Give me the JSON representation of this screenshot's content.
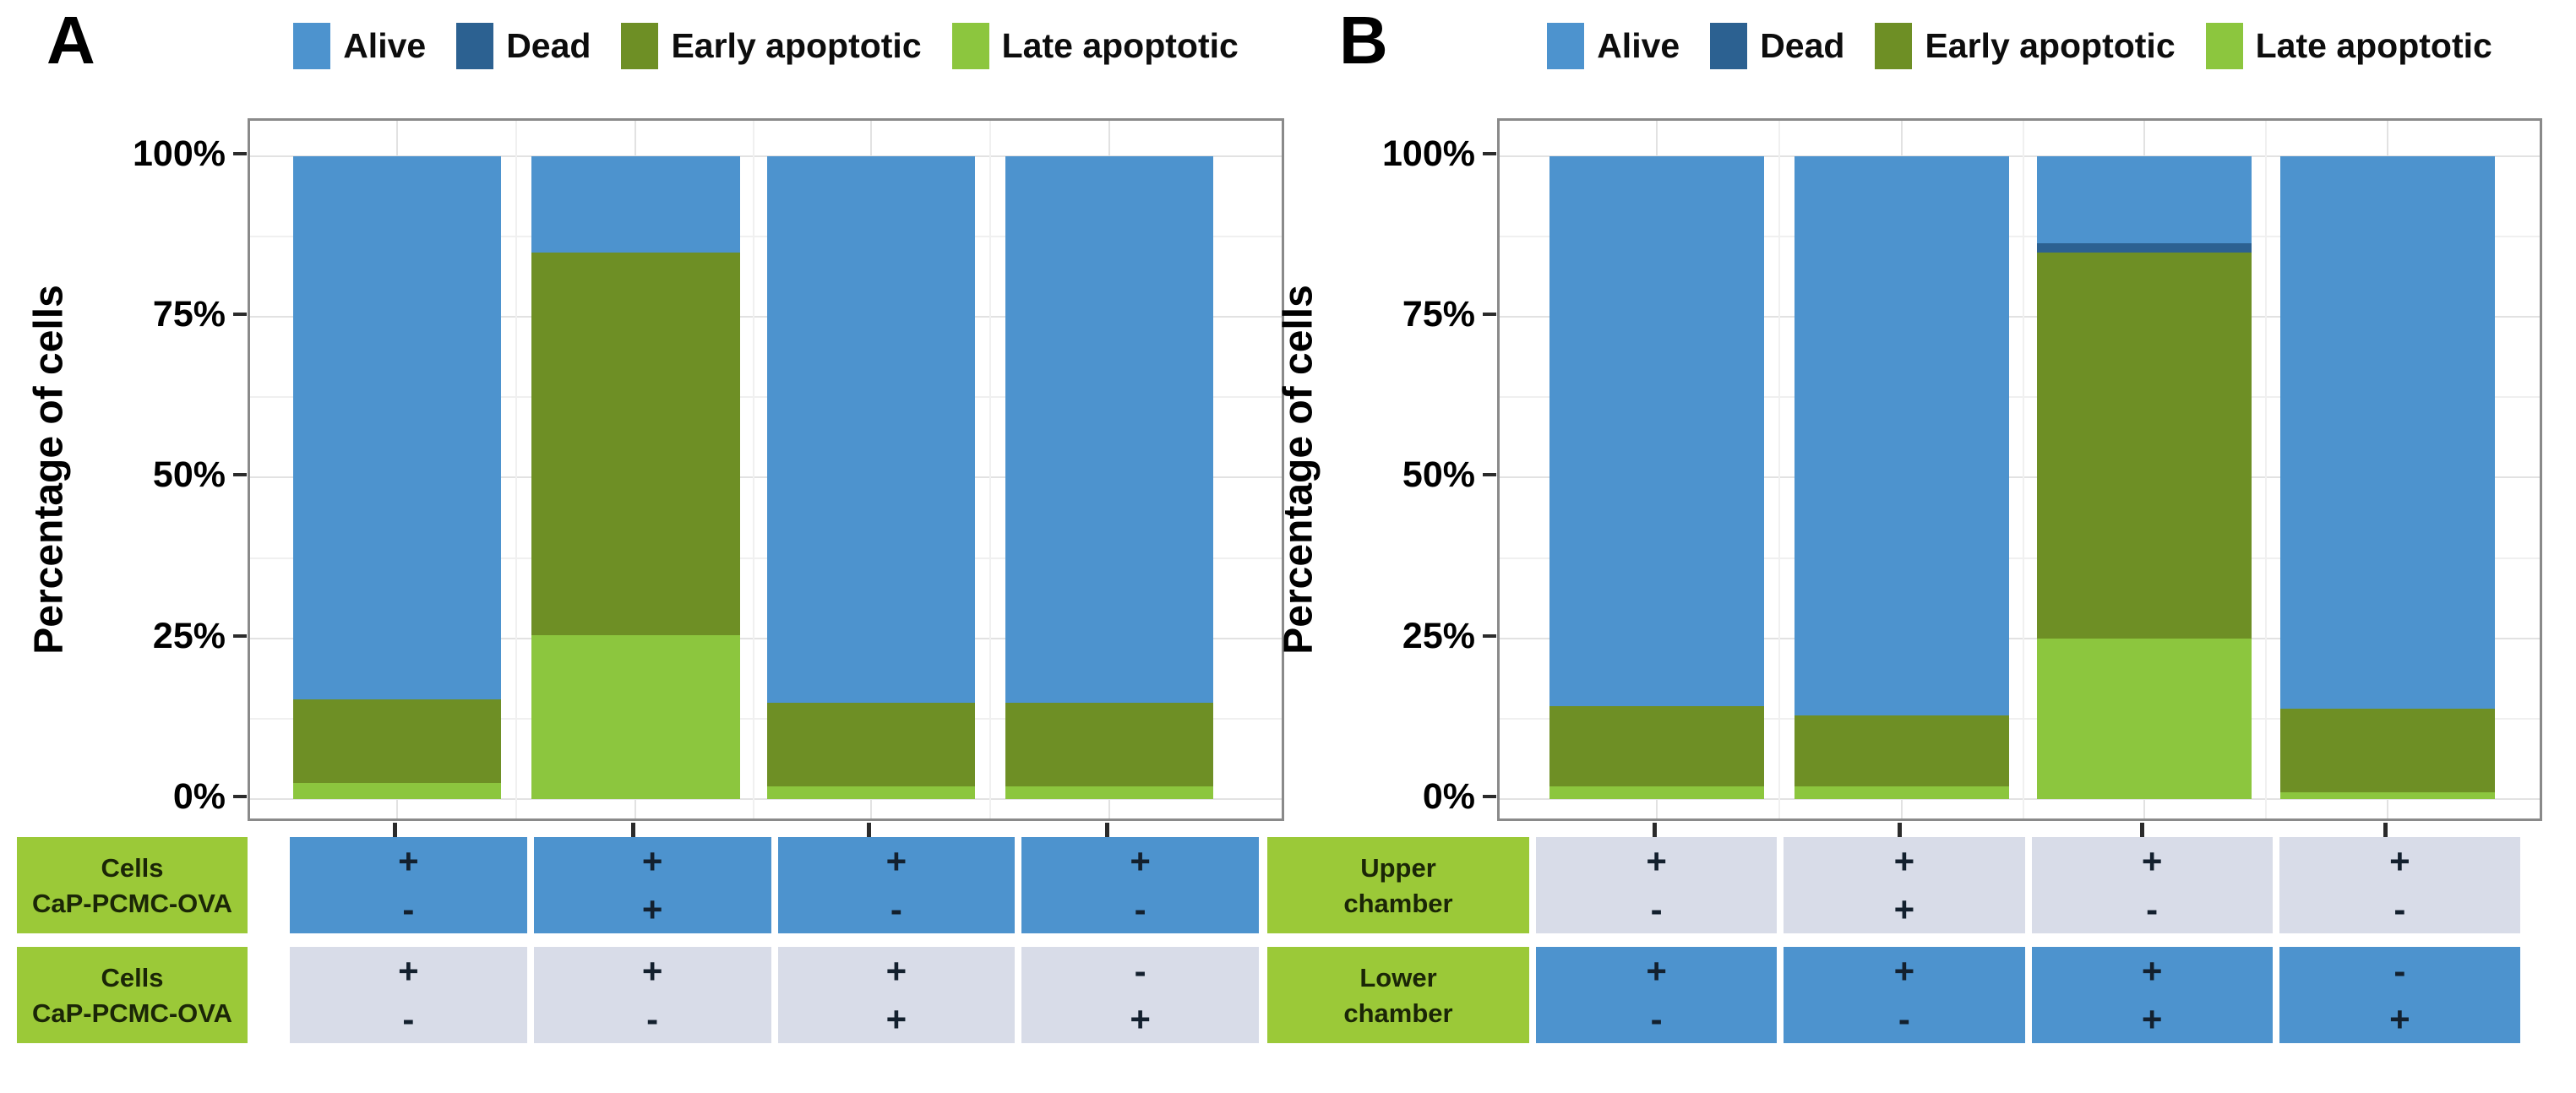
{
  "colors": {
    "alive": "#4d93ce",
    "dead": "#2c6191",
    "early_apoptotic": "#6e8f25",
    "late_apoptotic": "#8cc63e",
    "table_green": "#9bc938",
    "table_blue": "#4d93ce",
    "table_gray": "#d8dce8"
  },
  "y_axis": {
    "label": "Percentage of cells",
    "ticks": [
      "100%",
      "75%",
      "50%",
      "25%",
      "0%"
    ],
    "tick_values": [
      100,
      75,
      50,
      25,
      0
    ]
  },
  "legend": {
    "items": [
      {
        "label": "Alive",
        "color_key": "alive"
      },
      {
        "label": "Dead",
        "color_key": "dead"
      },
      {
        "label": "Early apoptotic",
        "color_key": "early_apoptotic"
      },
      {
        "label": "Late apoptotic",
        "color_key": "late_apoptotic"
      }
    ]
  },
  "panels": [
    {
      "letter": "A",
      "table": {
        "rows": [
          {
            "header_lines": [
              "Cells",
              "CaP-PCMC-OVA"
            ],
            "style": "blue",
            "cells": [
              [
                "+",
                "-"
              ],
              [
                "+",
                "+"
              ],
              [
                "+",
                "-"
              ],
              [
                "+",
                "-"
              ]
            ]
          },
          {
            "header_lines": [
              "Cells",
              "CaP-PCMC-OVA"
            ],
            "style": "gray",
            "cells": [
              [
                "+",
                "-"
              ],
              [
                "+",
                "-"
              ],
              [
                "+",
                "+"
              ],
              [
                "-",
                "+"
              ]
            ]
          }
        ]
      }
    },
    {
      "letter": "B",
      "table": {
        "rows": [
          {
            "header_lines": [
              "Upper",
              "chamber"
            ],
            "style": "gray",
            "cells": [
              [
                "+",
                "-"
              ],
              [
                "+",
                "+"
              ],
              [
                "+",
                "-"
              ],
              [
                "+",
                "-"
              ]
            ]
          },
          {
            "header_lines": [
              "Lower",
              "chamber"
            ],
            "style": "blue",
            "cells": [
              [
                "+",
                "-"
              ],
              [
                "+",
                "-"
              ],
              [
                "+",
                "+"
              ],
              [
                "-",
                "+"
              ]
            ]
          }
        ]
      }
    }
  ],
  "chart_data": [
    {
      "type": "bar",
      "stacked": true,
      "panel": "A",
      "title": "",
      "xlabel": "",
      "ylabel": "Percentage of cells",
      "ylim": [
        0,
        100
      ],
      "y_tick_labels": [
        "0%",
        "25%",
        "50%",
        "75%",
        "100%"
      ],
      "grid": true,
      "legend_position": "top",
      "stack_order": "bottom_to_top",
      "categories": [
        "lane-1",
        "lane-2",
        "lane-3",
        "lane-4"
      ],
      "series": [
        {
          "name": "Late apoptotic",
          "color_key": "late_apoptotic",
          "values": [
            2.5,
            25.5,
            2,
            2
          ]
        },
        {
          "name": "Early apoptotic",
          "color_key": "early_apoptotic",
          "values": [
            13,
            59.5,
            13,
            13
          ]
        },
        {
          "name": "Dead",
          "color_key": "dead",
          "values": [
            0,
            0,
            0,
            0
          ]
        },
        {
          "name": "Alive",
          "color_key": "alive",
          "values": [
            84.5,
            15,
            85,
            85
          ]
        }
      ]
    },
    {
      "type": "bar",
      "stacked": true,
      "panel": "B",
      "title": "",
      "xlabel": "",
      "ylabel": "Percentage of cells",
      "ylim": [
        0,
        100
      ],
      "y_tick_labels": [
        "0%",
        "25%",
        "50%",
        "75%",
        "100%"
      ],
      "grid": true,
      "legend_position": "top",
      "stack_order": "bottom_to_top",
      "categories": [
        "lane-1",
        "lane-2",
        "lane-3",
        "lane-4"
      ],
      "series": [
        {
          "name": "Late apoptotic",
          "color_key": "late_apoptotic",
          "values": [
            2,
            2,
            25,
            1
          ]
        },
        {
          "name": "Early apoptotic",
          "color_key": "early_apoptotic",
          "values": [
            12.5,
            11,
            60,
            13
          ]
        },
        {
          "name": "Dead",
          "color_key": "dead",
          "values": [
            0,
            0,
            1.5,
            0
          ]
        },
        {
          "name": "Alive",
          "color_key": "alive",
          "values": [
            85.5,
            87,
            13.5,
            86
          ]
        }
      ]
    }
  ]
}
